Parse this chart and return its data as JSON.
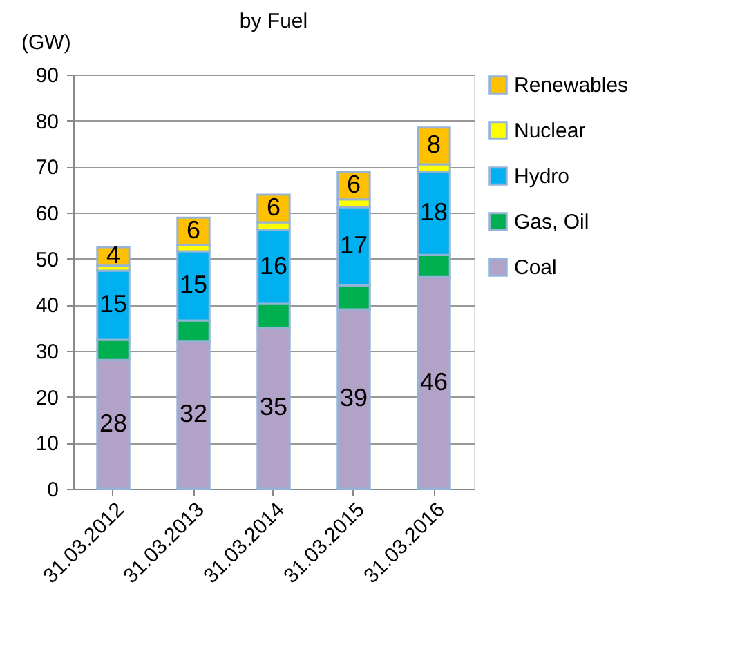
{
  "chart_data": {
    "type": "bar",
    "title": "by Fuel",
    "ylabel": "(GW)",
    "categories": [
      "31.03.2012",
      "31.03.2013",
      "31.03.2014",
      "31.03.2015",
      "31.03.2016"
    ],
    "stacked": true,
    "series": [
      {
        "name": "Coal",
        "color": "#b3a2c7",
        "values": [
          28,
          32,
          35,
          39,
          46
        ],
        "value_labels": [
          "28",
          "32",
          "35",
          "39",
          "46"
        ]
      },
      {
        "name": "Gas, Oil",
        "color": "#00b050",
        "values": [
          4.4,
          4.6,
          5.2,
          5.2,
          4.8
        ],
        "value_labels": [
          null,
          null,
          null,
          null,
          null
        ]
      },
      {
        "name": "Hydro",
        "color": "#00b0f0",
        "values": [
          15,
          15,
          16,
          17,
          18
        ],
        "value_labels": [
          "15",
          "15",
          "16",
          "17",
          "18"
        ]
      },
      {
        "name": "Nuclear",
        "color": "#ffff00",
        "values": [
          1.1,
          1.3,
          1.7,
          1.7,
          1.7
        ],
        "value_labels": [
          null,
          null,
          null,
          null,
          null
        ]
      },
      {
        "name": "Renewables",
        "color": "#ffc000",
        "values": [
          4,
          6,
          6,
          6,
          8
        ],
        "value_labels": [
          "4",
          "6",
          "6",
          "6",
          "8"
        ]
      }
    ],
    "ylim": [
      0,
      90
    ],
    "yticks": [
      0,
      10,
      20,
      30,
      40,
      50,
      60,
      70,
      80,
      90
    ],
    "grid": "y",
    "legend": "right"
  }
}
